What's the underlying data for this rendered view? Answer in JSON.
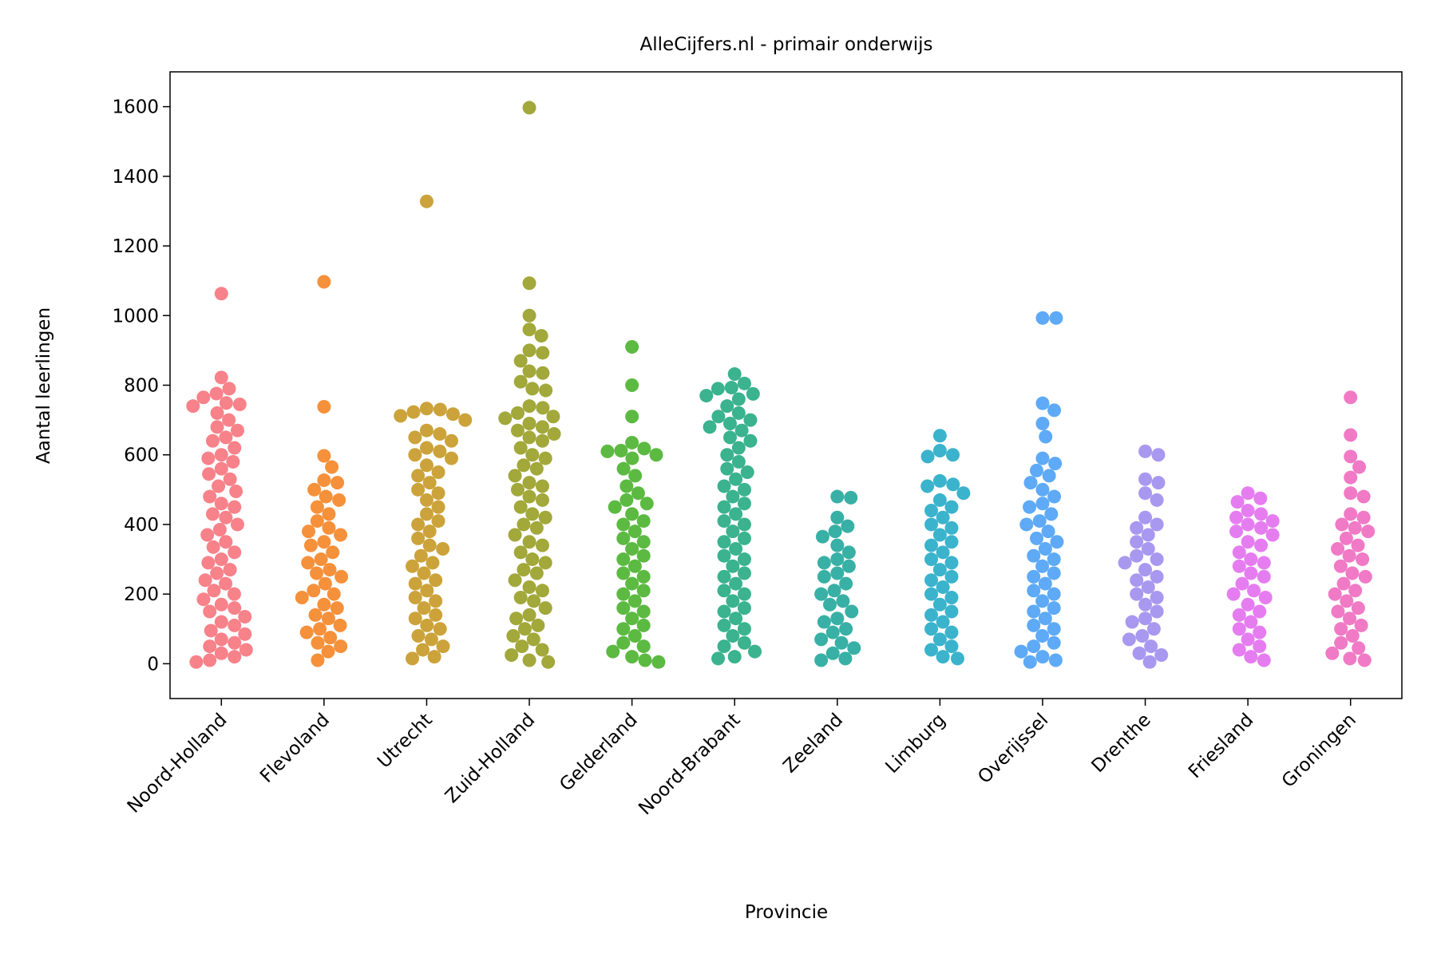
{
  "chart_data": {
    "type": "swarm",
    "title": "AlleCijfers.nl - primair onderwijs",
    "x_label": "Provincie",
    "y_label": "Aantal leerlingen",
    "categories": [
      "Noord-Holland",
      "Flevoland",
      "Utrecht",
      "Zuid-Holland",
      "Gelderland",
      "Noord-Brabant",
      "Zeeland",
      "Limburg",
      "Overijssel",
      "Drenthe",
      "Friesland",
      "Groningen"
    ],
    "colors": [
      "#f7828a",
      "#f5913b",
      "#cca33a",
      "#a2a83a",
      "#5cba42",
      "#3ab38e",
      "#38b0a5",
      "#3bb3cc",
      "#5eaaf6",
      "#a998f0",
      "#e57df0",
      "#f07ac5"
    ],
    "values": [
      [
        1063,
        822,
        790,
        776,
        765,
        749,
        745,
        740,
        720,
        700,
        680,
        670,
        650,
        640,
        620,
        600,
        590,
        580,
        560,
        545,
        530,
        510,
        495,
        480,
        460,
        450,
        430,
        420,
        400,
        385,
        370,
        350,
        335,
        320,
        300,
        290,
        270,
        260,
        240,
        230,
        210,
        200,
        185,
        170,
        160,
        150,
        135,
        120,
        110,
        95,
        85,
        70,
        60,
        50,
        40,
        30,
        20,
        10,
        5
      ],
      [
        1097,
        738,
        597,
        565,
        527,
        520,
        500,
        480,
        470,
        450,
        430,
        410,
        390,
        380,
        370,
        350,
        340,
        320,
        300,
        290,
        270,
        260,
        250,
        230,
        210,
        200,
        190,
        170,
        160,
        140,
        130,
        110,
        100,
        90,
        75,
        60,
        50,
        35,
        10
      ],
      [
        1328,
        733,
        730,
        723,
        717,
        712,
        700,
        670,
        660,
        650,
        640,
        620,
        610,
        600,
        590,
        570,
        550,
        540,
        520,
        500,
        490,
        470,
        450,
        430,
        410,
        400,
        380,
        360,
        340,
        330,
        310,
        290,
        280,
        260,
        240,
        230,
        210,
        190,
        180,
        160,
        140,
        130,
        110,
        100,
        80,
        70,
        50,
        40,
        20,
        15
      ],
      [
        1597,
        1093,
        1000,
        960,
        942,
        900,
        893,
        870,
        840,
        835,
        810,
        790,
        785,
        740,
        735,
        720,
        710,
        705,
        690,
        680,
        670,
        660,
        650,
        640,
        620,
        600,
        590,
        570,
        560,
        540,
        520,
        510,
        500,
        480,
        470,
        450,
        430,
        420,
        400,
        390,
        370,
        350,
        340,
        320,
        300,
        290,
        270,
        260,
        240,
        220,
        210,
        190,
        180,
        160,
        140,
        130,
        110,
        100,
        80,
        70,
        50,
        40,
        25,
        10,
        5
      ],
      [
        910,
        800,
        710,
        635,
        618,
        612,
        610,
        600,
        590,
        560,
        540,
        510,
        490,
        470,
        460,
        450,
        430,
        410,
        400,
        380,
        360,
        350,
        330,
        310,
        300,
        280,
        260,
        250,
        230,
        210,
        200,
        180,
        160,
        150,
        130,
        110,
        100,
        80,
        60,
        50,
        35,
        20,
        10,
        5
      ],
      [
        832,
        805,
        793,
        790,
        775,
        770,
        760,
        740,
        720,
        710,
        700,
        690,
        680,
        670,
        650,
        640,
        620,
        600,
        580,
        560,
        550,
        530,
        510,
        500,
        480,
        460,
        450,
        430,
        410,
        400,
        380,
        360,
        350,
        330,
        310,
        300,
        280,
        260,
        250,
        230,
        210,
        200,
        180,
        160,
        150,
        130,
        110,
        100,
        80,
        60,
        50,
        35,
        20,
        15
      ],
      [
        480,
        477,
        420,
        395,
        380,
        365,
        340,
        320,
        300,
        290,
        280,
        260,
        250,
        230,
        210,
        200,
        180,
        170,
        150,
        130,
        120,
        100,
        90,
        70,
        60,
        45,
        30,
        15,
        10
      ],
      [
        655,
        612,
        600,
        595,
        525,
        515,
        510,
        490,
        470,
        450,
        440,
        420,
        400,
        390,
        370,
        350,
        340,
        320,
        300,
        290,
        270,
        250,
        240,
        220,
        200,
        190,
        170,
        150,
        140,
        120,
        100,
        90,
        70,
        50,
        40,
        20,
        15
      ],
      [
        993,
        993,
        748,
        728,
        690,
        652,
        590,
        575,
        555,
        540,
        520,
        500,
        480,
        460,
        450,
        430,
        410,
        400,
        380,
        360,
        350,
        330,
        310,
        300,
        280,
        260,
        250,
        230,
        210,
        200,
        180,
        160,
        150,
        130,
        110,
        100,
        80,
        60,
        50,
        35,
        20,
        10,
        5
      ],
      [
        610,
        600,
        530,
        520,
        490,
        470,
        420,
        400,
        390,
        370,
        350,
        330,
        310,
        300,
        290,
        270,
        250,
        240,
        220,
        200,
        190,
        170,
        150,
        130,
        120,
        100,
        80,
        70,
        50,
        30,
        25,
        5
      ],
      [
        490,
        475,
        465,
        440,
        430,
        420,
        410,
        400,
        390,
        380,
        370,
        350,
        340,
        320,
        300,
        290,
        280,
        260,
        250,
        230,
        210,
        200,
        190,
        170,
        150,
        140,
        120,
        100,
        90,
        70,
        50,
        40,
        20,
        10
      ],
      [
        765,
        657,
        595,
        565,
        535,
        490,
        480,
        430,
        420,
        400,
        390,
        380,
        360,
        340,
        330,
        310,
        300,
        280,
        260,
        250,
        230,
        210,
        200,
        180,
        160,
        150,
        130,
        110,
        100,
        80,
        60,
        45,
        30,
        15,
        10
      ]
    ],
    "ylim": [
      -100,
      1700
    ],
    "yticks": [
      0,
      200,
      400,
      600,
      800,
      1000,
      1200,
      1400,
      1600
    ]
  }
}
